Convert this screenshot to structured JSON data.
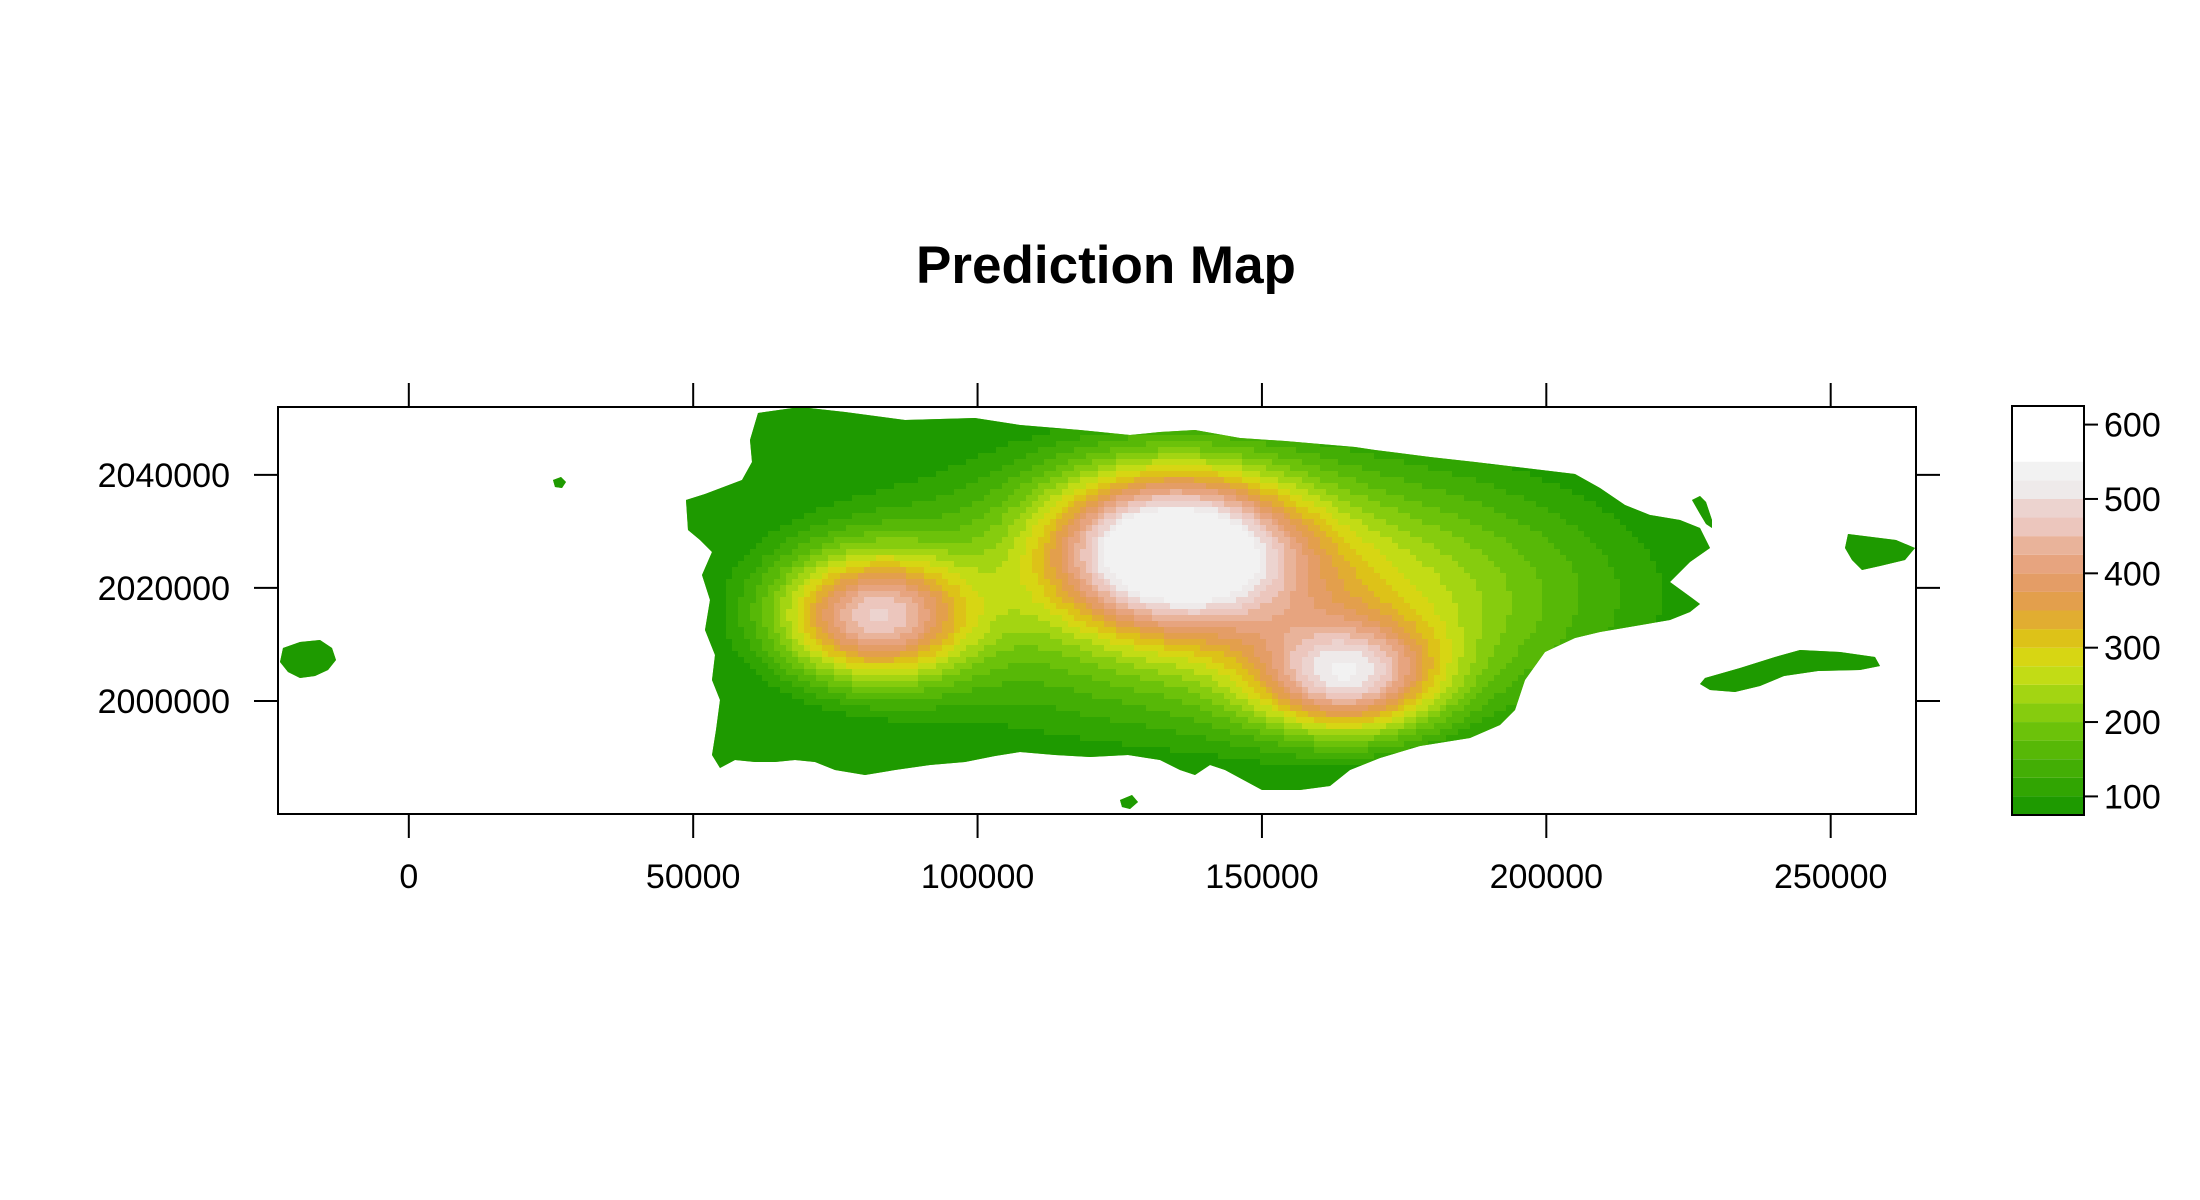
{
  "title": "Prediction Map",
  "chart_data": {
    "type": "heatmap",
    "title": "Prediction Map",
    "xlabel": "",
    "ylabel": "",
    "xlim": [
      -23000,
      265000
    ],
    "ylim": [
      1980000,
      2052000
    ],
    "x_ticks": [
      0,
      50000,
      100000,
      150000,
      200000,
      250000
    ],
    "y_ticks": [
      2000000,
      2020000,
      2040000
    ],
    "colorkey": {
      "range": [
        75,
        625
      ],
      "step": 25,
      "ticks": [
        100,
        200,
        300,
        400,
        500,
        600
      ],
      "colors": [
        "#1e9a00",
        "#31a502",
        "#43ae05",
        "#57b807",
        "#6cc20a",
        "#86cc0e",
        "#a3d512",
        "#c2dc15",
        "#d7d613",
        "#ddc218",
        "#e1ad31",
        "#e39f4c",
        "#e49d66",
        "#e7a47f",
        "#e9b39a",
        "#ecc6bd",
        "#ecd3cf",
        "#eeeaea",
        "#f2f2f2"
      ],
      "placement": "right"
    },
    "hotspots": [
      {
        "x": 134000,
        "y": 2027000,
        "value": 610
      },
      {
        "x": 82000,
        "y": 2015000,
        "value": 515
      },
      {
        "x": 165000,
        "y": 2004000,
        "value": 470
      }
    ],
    "land_masses": [
      "main island",
      "east islet",
      "west islet",
      "east island (north)",
      "east island (south)"
    ]
  }
}
